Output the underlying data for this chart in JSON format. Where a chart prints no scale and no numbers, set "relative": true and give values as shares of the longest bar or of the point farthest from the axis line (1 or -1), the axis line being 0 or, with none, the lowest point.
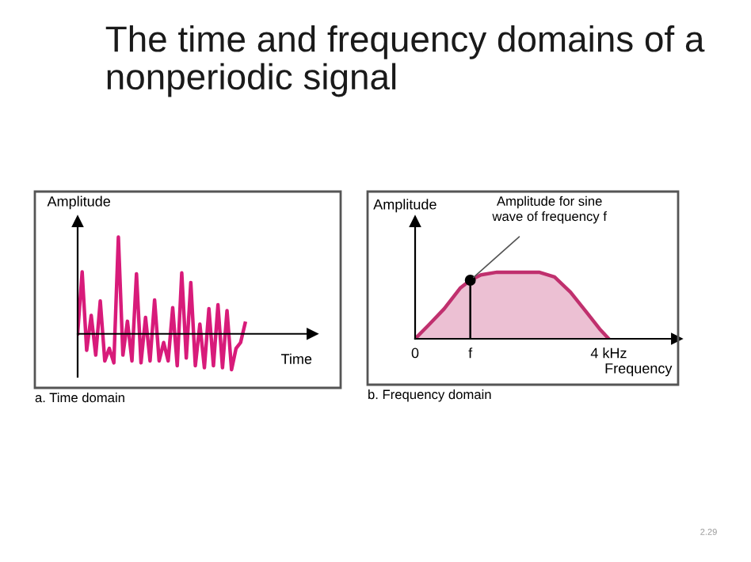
{
  "chart_data": [
    {
      "type": "line",
      "title": "The time and frequency domains of a nonperiodic signal",
      "ylabel": "Amplitude",
      "xlabel": "Time",
      "relative": true,
      "legend": false,
      "grid": false,
      "marker": "none",
      "line_style": "solid",
      "categories": [
        null,
        null,
        null,
        null,
        null,
        null,
        null,
        null,
        null,
        null,
        null,
        null,
        null,
        null,
        null,
        null,
        null,
        null,
        null,
        null,
        null,
        null,
        null,
        null,
        null,
        null,
        null,
        null,
        null,
        null,
        null,
        null,
        null,
        null,
        null,
        null,
        null,
        null
      ],
      "series": [
        {
          "color": "#d81b7a",
          "values": [
            0,
            0.64,
            -0.17,
            0.19,
            -0.22,
            0.34,
            -0.28,
            -0.15,
            -0.3,
            1.0,
            -0.22,
            0.13,
            -0.28,
            0.62,
            -0.3,
            0.17,
            -0.28,
            0.35,
            -0.28,
            -0.09,
            -0.28,
            0.27,
            -0.33,
            0.63,
            -0.25,
            0.53,
            -0.33,
            0.1,
            -0.35,
            0.26,
            -0.33,
            0.3,
            -0.35,
            0.24,
            -0.37,
            -0.15,
            -0.09,
            0.11
          ]
        }
      ],
      "annotations": [
        "a. Time domain"
      ]
    },
    {
      "type": "area",
      "ylabel": "Amplitude",
      "xlabel": "Frequency",
      "relative": true,
      "legend": false,
      "grid": false,
      "marker": "none",
      "line_style": "solid",
      "xlim": [
        0,
        5.4
      ],
      "xticks": [
        0,
        {
          "value": 1.14,
          "label": "f"
        },
        {
          "value": 4,
          "label": "4 kHz"
        }
      ],
      "x": [
        0,
        0.27,
        0.6,
        0.93,
        1.14,
        1.36,
        1.69,
        2.56,
        2.88,
        3.21,
        3.54,
        3.81,
        4
      ],
      "series": [
        {
          "color": "#c0306e",
          "values": [
            0,
            0.2,
            0.45,
            0.76,
            0.88,
            0.96,
            1.0,
            1.0,
            0.93,
            0.7,
            0.4,
            0.15,
            0
          ]
        }
      ],
      "ref_lines": [
        {
          "axis": "x",
          "value": 1.14,
          "color": "#000000"
        }
      ],
      "annotations": [
        {
          "text": "Amplitude for sine\nwave of frequency f",
          "x": 1.14,
          "y": 0.88
        },
        "b. Frequency domain",
        "2.29"
      ]
    }
  ]
}
